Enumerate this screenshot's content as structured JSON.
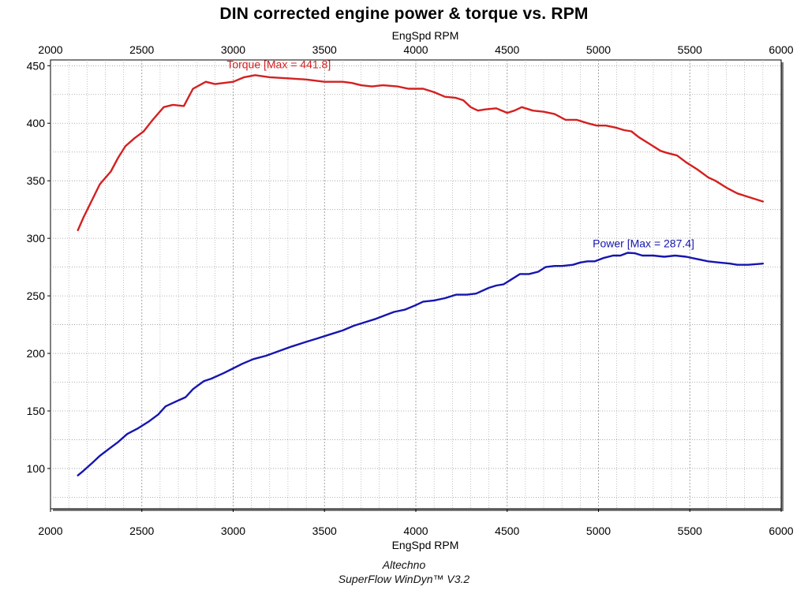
{
  "title": "DIN corrected engine power & torque vs. RPM",
  "footer": {
    "line1": "Altechno",
    "line2": "SuperFlow WinDyn™ V3.2"
  },
  "colors": {
    "torque": "#d42020",
    "power": "#1515b0",
    "grid": "#9a9a9a",
    "frame_shadow": "#7a7a7a"
  },
  "chart_data": {
    "type": "line",
    "title": "DIN corrected engine power & torque vs. RPM",
    "xlabel": "EngSpd RPM",
    "xlabel_top": "EngSpd RPM",
    "ylabel": "",
    "xlim": [
      2000,
      6000
    ],
    "ylim": [
      65,
      455
    ],
    "x_ticks": [
      2000,
      2500,
      3000,
      3500,
      4000,
      4500,
      5000,
      5500,
      6000
    ],
    "y_ticks": [
      100,
      150,
      200,
      250,
      300,
      350,
      400,
      450
    ],
    "grid": true,
    "series": [
      {
        "name": "Torque",
        "annotation": "Torque [Max = 441.8]",
        "color": "#d42020",
        "points": [
          [
            2150,
            307
          ],
          [
            2180,
            318
          ],
          [
            2230,
            334
          ],
          [
            2270,
            347
          ],
          [
            2330,
            358
          ],
          [
            2370,
            370
          ],
          [
            2410,
            380
          ],
          [
            2460,
            387
          ],
          [
            2510,
            393
          ],
          [
            2560,
            403
          ],
          [
            2620,
            414
          ],
          [
            2670,
            416
          ],
          [
            2730,
            415
          ],
          [
            2780,
            430
          ],
          [
            2850,
            436
          ],
          [
            2900,
            434
          ],
          [
            3000,
            436
          ],
          [
            3060,
            440
          ],
          [
            3120,
            441.8
          ],
          [
            3200,
            440
          ],
          [
            3300,
            439
          ],
          [
            3400,
            438
          ],
          [
            3500,
            436
          ],
          [
            3600,
            436
          ],
          [
            3650,
            435
          ],
          [
            3700,
            433
          ],
          [
            3760,
            432
          ],
          [
            3820,
            433
          ],
          [
            3900,
            432
          ],
          [
            3960,
            430
          ],
          [
            4040,
            430
          ],
          [
            4100,
            427
          ],
          [
            4160,
            423
          ],
          [
            4220,
            422
          ],
          [
            4260,
            420
          ],
          [
            4300,
            414
          ],
          [
            4340,
            411
          ],
          [
            4380,
            412
          ],
          [
            4440,
            413
          ],
          [
            4500,
            409
          ],
          [
            4540,
            411
          ],
          [
            4580,
            414
          ],
          [
            4640,
            411
          ],
          [
            4700,
            410
          ],
          [
            4760,
            408
          ],
          [
            4820,
            403
          ],
          [
            4880,
            403
          ],
          [
            4940,
            400
          ],
          [
            4990,
            398
          ],
          [
            5040,
            398
          ],
          [
            5100,
            396
          ],
          [
            5140,
            394
          ],
          [
            5180,
            393
          ],
          [
            5220,
            388
          ],
          [
            5280,
            382
          ],
          [
            5340,
            376
          ],
          [
            5380,
            374
          ],
          [
            5430,
            372
          ],
          [
            5480,
            366
          ],
          [
            5540,
            360
          ],
          [
            5600,
            353
          ],
          [
            5640,
            350
          ],
          [
            5700,
            344
          ],
          [
            5760,
            339
          ],
          [
            5820,
            336
          ],
          [
            5900,
            332
          ]
        ]
      },
      {
        "name": "Power",
        "annotation": "Power  [Max = 287.4]",
        "color": "#1515b0",
        "points": [
          [
            2150,
            94
          ],
          [
            2180,
            98
          ],
          [
            2230,
            105
          ],
          [
            2270,
            111
          ],
          [
            2320,
            117
          ],
          [
            2370,
            123
          ],
          [
            2420,
            130
          ],
          [
            2480,
            135
          ],
          [
            2540,
            141
          ],
          [
            2590,
            147
          ],
          [
            2630,
            154
          ],
          [
            2670,
            157
          ],
          [
            2740,
            162
          ],
          [
            2780,
            169
          ],
          [
            2840,
            176
          ],
          [
            2880,
            178
          ],
          [
            2950,
            183
          ],
          [
            3000,
            187
          ],
          [
            3050,
            191
          ],
          [
            3110,
            195
          ],
          [
            3180,
            198
          ],
          [
            3250,
            202
          ],
          [
            3320,
            206
          ],
          [
            3400,
            210
          ],
          [
            3460,
            213
          ],
          [
            3520,
            216
          ],
          [
            3600,
            220
          ],
          [
            3660,
            224
          ],
          [
            3720,
            227
          ],
          [
            3780,
            230
          ],
          [
            3830,
            233
          ],
          [
            3880,
            236
          ],
          [
            3940,
            238
          ],
          [
            4000,
            242
          ],
          [
            4040,
            245
          ],
          [
            4100,
            246
          ],
          [
            4160,
            248
          ],
          [
            4220,
            251
          ],
          [
            4280,
            251
          ],
          [
            4330,
            252
          ],
          [
            4400,
            257
          ],
          [
            4440,
            259
          ],
          [
            4480,
            260
          ],
          [
            4520,
            264
          ],
          [
            4570,
            269
          ],
          [
            4620,
            269
          ],
          [
            4670,
            271
          ],
          [
            4710,
            275
          ],
          [
            4760,
            276
          ],
          [
            4800,
            276
          ],
          [
            4860,
            277
          ],
          [
            4900,
            279
          ],
          [
            4940,
            280
          ],
          [
            4980,
            280
          ],
          [
            5030,
            283
          ],
          [
            5080,
            285
          ],
          [
            5120,
            285
          ],
          [
            5160,
            287.4
          ],
          [
            5200,
            287
          ],
          [
            5240,
            285
          ],
          [
            5300,
            285
          ],
          [
            5360,
            284
          ],
          [
            5420,
            285
          ],
          [
            5480,
            284
          ],
          [
            5540,
            282
          ],
          [
            5600,
            280
          ],
          [
            5660,
            279
          ],
          [
            5720,
            278
          ],
          [
            5760,
            277
          ],
          [
            5820,
            277
          ],
          [
            5900,
            278
          ]
        ]
      }
    ]
  }
}
